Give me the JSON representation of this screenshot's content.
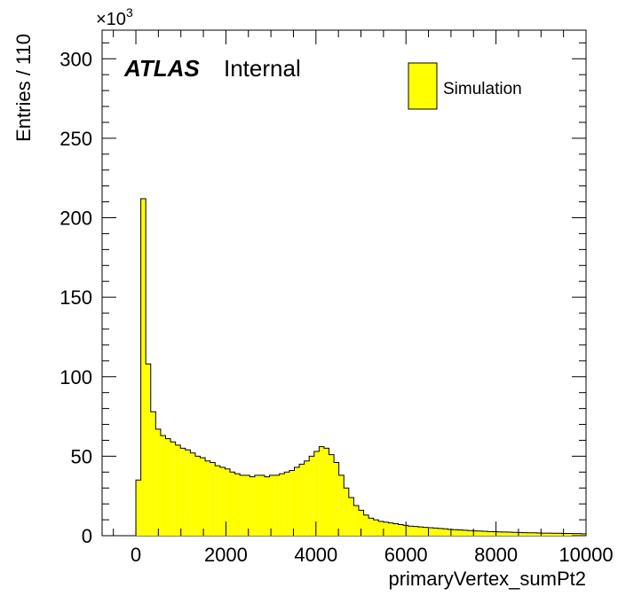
{
  "chart_data": {
    "type": "histogram",
    "xlabel": "primaryVertex_sumPt2",
    "ylabel": "Entries / 110",
    "y_multiplier_label": "×10",
    "y_multiplier_exponent": "3",
    "atlas_label": "ATLAS",
    "atlas_status": "Internal",
    "xlim": [
      -750,
      10000
    ],
    "ylim": [
      0,
      318
    ],
    "bin_width": 110,
    "x_ticks": [
      0,
      2000,
      4000,
      6000,
      8000,
      10000
    ],
    "y_ticks": [
      0,
      50,
      100,
      150,
      200,
      250,
      300
    ],
    "grid": false,
    "legend_position": "top-right",
    "series": [
      {
        "name": "Simulation",
        "color": "#ffff00",
        "edge_color": "#000000",
        "bin_start": 0,
        "values": [
          35,
          212,
          108,
          78,
          67,
          63,
          61,
          59,
          57,
          55,
          54,
          52,
          50,
          49,
          47,
          46,
          44,
          43,
          42,
          40,
          39,
          38,
          38,
          37,
          38,
          38,
          37,
          38,
          38,
          39,
          40,
          41,
          43,
          45,
          47,
          50,
          53,
          56,
          55,
          51,
          46,
          38,
          30,
          24,
          19,
          16,
          13,
          11,
          10,
          9,
          8.5,
          8,
          7.5,
          7,
          6.5,
          6,
          5.8,
          5.5,
          5.2,
          5,
          4.8,
          4.5,
          4.3,
          4,
          3.8,
          3.6,
          3.4,
          3.2,
          3,
          2.9,
          2.8,
          2.6,
          2.5,
          2.4,
          2.3,
          2.2,
          2.1,
          2,
          1.9,
          1.8,
          1.8,
          1.7,
          1.6,
          1.6,
          1.5,
          1.5,
          1.4,
          1.4,
          1.3,
          1.3,
          1.2
        ]
      }
    ]
  }
}
